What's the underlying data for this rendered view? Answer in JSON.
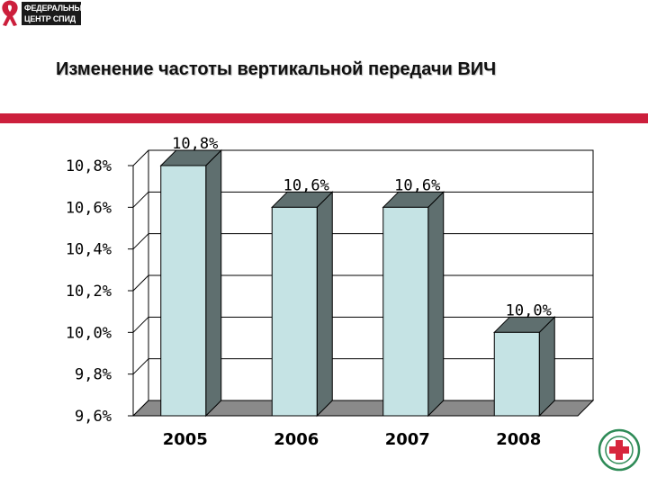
{
  "logo": {
    "line1": "ФЕДЕРАЛЬНЫЙ",
    "line2": "ЦЕНТР СПИД",
    "seal_text": "ФЕДЕРАЛЬНЫЙ ЦЕНТР СПИД"
  },
  "title": "Изменение частоты вертикальной передачи ВИЧ",
  "colors": {
    "accent_band": "#cc1f3c",
    "bar_front": "#c5e3e4",
    "bar_side": "#5f6f6f",
    "floor": "#8a8a8a"
  },
  "chart_data": {
    "type": "bar",
    "title": "",
    "xlabel": "",
    "ylabel": "",
    "categories": [
      "2005",
      "2006",
      "2007",
      "2008"
    ],
    "values": [
      10.8,
      10.6,
      10.6,
      10.0
    ],
    "data_labels": [
      "10,8%",
      "10,6%",
      "10,6%",
      "10,0%"
    ],
    "ylim": [
      9.6,
      10.8
    ],
    "yticks": [
      9.6,
      9.8,
      10.0,
      10.2,
      10.4,
      10.6,
      10.8
    ],
    "ytick_labels": [
      "9,6%",
      "9,8%",
      "10,0%",
      "10,2%",
      "10,4%",
      "10,6%",
      "10,8%"
    ],
    "grid": true,
    "legend": "none",
    "style": "3d-bar"
  }
}
